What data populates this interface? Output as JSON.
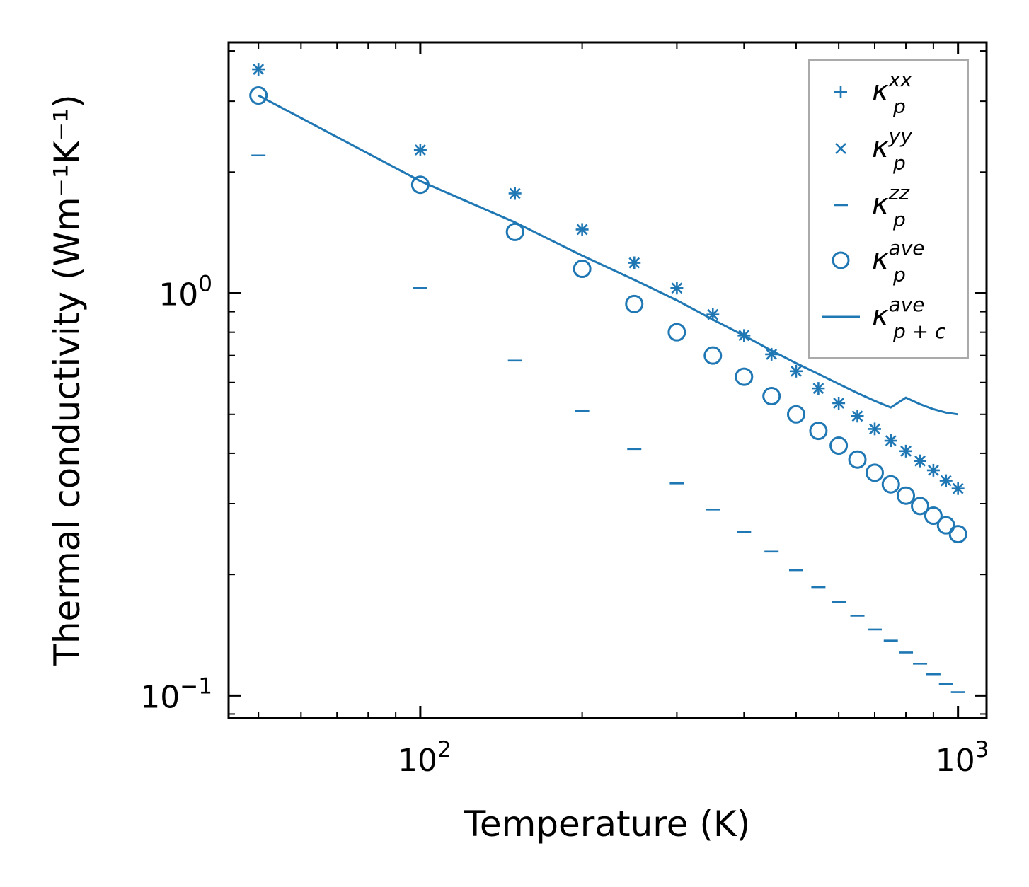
{
  "chart_data": {
    "type": "scatter",
    "title": "",
    "xlabel": "Temperature (K)",
    "ylabel": "Thermal conductivity (Wm⁻¹K⁻¹)",
    "xscale": "log",
    "yscale": "log",
    "xlim": [
      44,
      1130
    ],
    "ylim": [
      0.088,
      4.2
    ],
    "x_major_ticks": [
      {
        "value": 100,
        "base": "10",
        "exp": "2"
      },
      {
        "value": 1000,
        "base": "10",
        "exp": "3"
      }
    ],
    "y_major_ticks": [
      {
        "value": 0.1,
        "base": "10",
        "exp": "−1"
      },
      {
        "value": 1,
        "base": "10",
        "exp": "0"
      }
    ],
    "color": "#1f77b4",
    "grid": false,
    "legend_position": "top-right",
    "x": [
      50,
      100,
      150,
      200,
      250,
      300,
      350,
      400,
      450,
      500,
      550,
      600,
      650,
      700,
      750,
      800,
      850,
      900,
      950,
      1000
    ],
    "series": [
      {
        "name": "xx",
        "label_base": "κ",
        "label_sub": "p",
        "label_sup": "xx",
        "marker": "plus",
        "values": [
          3.6,
          2.27,
          1.77,
          1.44,
          1.19,
          1.03,
          0.885,
          0.785,
          0.705,
          0.64,
          0.58,
          0.533,
          0.495,
          0.46,
          0.43,
          0.405,
          0.383,
          0.363,
          0.342,
          0.327
        ]
      },
      {
        "name": "yy",
        "label_base": "κ",
        "label_sub": "p",
        "label_sup": "yy",
        "marker": "x",
        "values": [
          3.6,
          2.27,
          1.77,
          1.44,
          1.19,
          1.03,
          0.885,
          0.785,
          0.705,
          0.64,
          0.58,
          0.533,
          0.495,
          0.46,
          0.43,
          0.405,
          0.383,
          0.363,
          0.342,
          0.327
        ]
      },
      {
        "name": "zz",
        "label_base": "κ",
        "label_sub": "p",
        "label_sup": "zz",
        "marker": "hline",
        "values": [
          2.2,
          1.03,
          0.68,
          0.51,
          0.41,
          0.337,
          0.29,
          0.255,
          0.228,
          0.205,
          0.186,
          0.171,
          0.158,
          0.146,
          0.137,
          0.128,
          0.12,
          0.113,
          0.107,
          0.102
        ]
      },
      {
        "name": "ave",
        "label_base": "κ",
        "label_sub": "p",
        "label_sup": "ave",
        "marker": "circle",
        "values": [
          3.1,
          1.86,
          1.42,
          1.15,
          0.94,
          0.8,
          0.7,
          0.62,
          0.555,
          0.5,
          0.455,
          0.418,
          0.386,
          0.358,
          0.335,
          0.314,
          0.296,
          0.28,
          0.265,
          0.252
        ]
      },
      {
        "name": "ave_pc",
        "label_base": "κ",
        "label_sub": "p + c",
        "label_sup": "ave",
        "marker": "line",
        "values": [
          3.1,
          1.9,
          1.5,
          1.24,
          1.08,
          0.96,
          0.86,
          0.785,
          0.72,
          0.67,
          0.63,
          0.595,
          0.565,
          0.54,
          0.52,
          0.55,
          0.53,
          0.515,
          0.505,
          0.5
        ]
      }
    ]
  }
}
